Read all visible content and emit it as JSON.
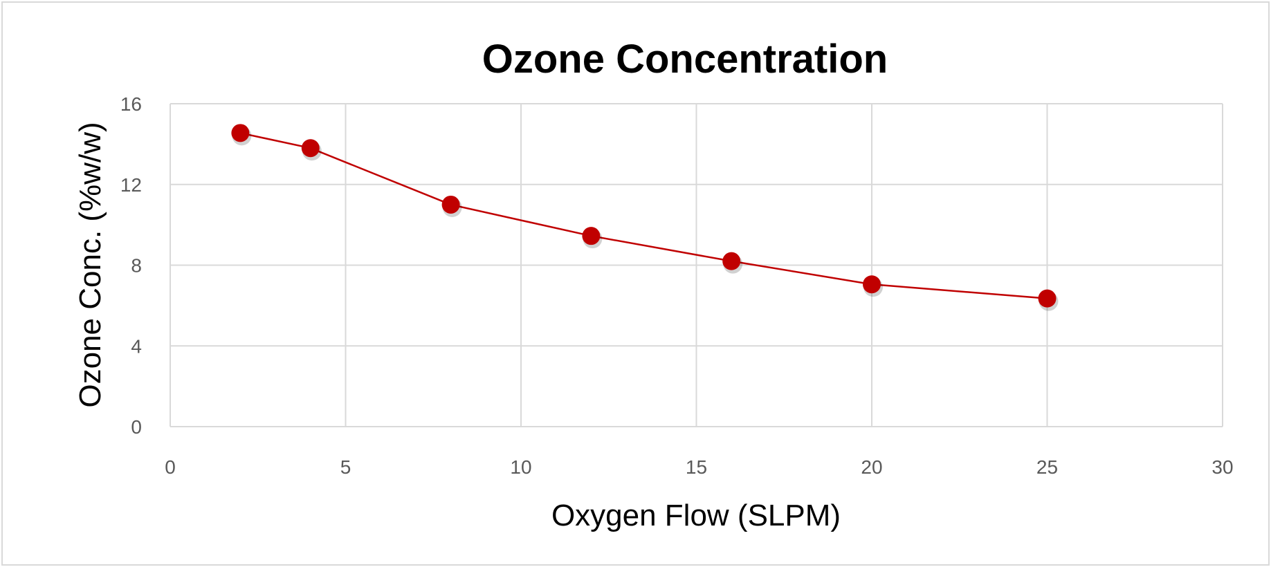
{
  "chart_data": {
    "type": "line",
    "title": "Ozone Concentration",
    "xlabel": "Oxygen Flow (SLPM)",
    "ylabel": "Ozone Conc. (%w/w)",
    "xlim": [
      0,
      30
    ],
    "ylim": [
      0,
      16
    ],
    "xticks": [
      0,
      5,
      10,
      15,
      20,
      25,
      30
    ],
    "yticks": [
      0,
      4,
      8,
      12,
      16
    ],
    "grid": true,
    "legend": "none",
    "series": [
      {
        "name": "Ozone Conc.",
        "color": "#c00000",
        "x": [
          2,
          4,
          8,
          12,
          16,
          20,
          25
        ],
        "y": [
          14.55,
          13.8,
          11.0,
          9.45,
          8.2,
          7.05,
          6.35
        ]
      }
    ]
  }
}
